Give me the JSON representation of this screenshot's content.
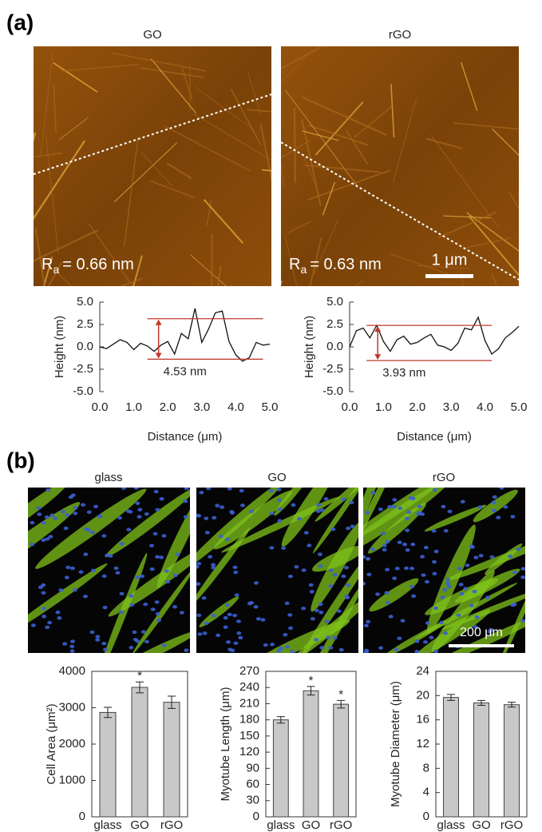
{
  "panel_labels": [
    "(a)",
    "(b)"
  ],
  "afm_images": [
    {
      "title": "GO",
      "roughness_symbol": "R",
      "roughness_sub": "a",
      "roughness_text": "= 0.66 nm"
    },
    {
      "title": "rGO",
      "roughness_symbol": "R",
      "roughness_sub": "a",
      "roughness_text": "= 0.63 nm",
      "scale_bar": "1 μm"
    }
  ],
  "fluorescence_images": [
    {
      "title": "glass"
    },
    {
      "title": "GO"
    },
    {
      "title": "rGO",
      "scale_bar": "200 μm"
    }
  ],
  "chart_data": [
    {
      "type": "line",
      "y_label": "Height (nm)",
      "x_label": "Distance (μm)",
      "color": "#111111",
      "x": [
        0.0,
        0.2,
        0.4,
        0.6,
        0.8,
        1.0,
        1.2,
        1.4,
        1.6,
        1.8,
        2.0,
        2.2,
        2.4,
        2.6,
        2.8,
        3.0,
        3.2,
        3.4,
        3.6,
        3.8,
        4.0,
        4.2,
        4.4,
        4.6,
        4.8,
        5.0
      ],
      "values": [
        0.0,
        -0.2,
        0.3,
        0.8,
        0.5,
        -0.3,
        0.4,
        0.1,
        -0.5,
        0.2,
        0.6,
        -0.8,
        1.5,
        0.9,
        4.3,
        0.5,
        2.0,
        3.8,
        4.0,
        0.6,
        -0.9,
        -1.6,
        -1.2,
        0.5,
        0.2,
        0.3
      ],
      "hlines": [
        3.15,
        -1.38
      ],
      "hline_x": [
        1.4,
        4.8
      ],
      "hline_color": "#c0392b",
      "annotation": "4.53 nm",
      "xlim": [
        0,
        5
      ],
      "ylim": [
        -5,
        5
      ],
      "xticks": [
        {
          "value": 0,
          "label": "0.0"
        },
        {
          "value": 1,
          "label": "1.0"
        },
        {
          "value": 2,
          "label": "2.0"
        },
        {
          "value": 3,
          "label": "3.0"
        },
        {
          "value": 4,
          "label": "4.0"
        },
        {
          "value": 5,
          "label": "5.0"
        }
      ],
      "yticks": [
        {
          "value": 5,
          "label": "5.0"
        },
        {
          "value": 2.5,
          "label": "2.5"
        },
        {
          "value": 0,
          "label": "0.0"
        },
        {
          "value": -2.5,
          "label": "-2.5"
        },
        {
          "value": -5,
          "label": "-5.0"
        }
      ]
    },
    {
      "type": "line",
      "y_label": "Height (nm)",
      "x_label": "Distance (μm)",
      "color": "#111111",
      "x": [
        0.0,
        0.2,
        0.4,
        0.6,
        0.8,
        1.0,
        1.2,
        1.4,
        1.6,
        1.8,
        2.0,
        2.2,
        2.4,
        2.6,
        2.8,
        3.0,
        3.2,
        3.4,
        3.6,
        3.8,
        4.0,
        4.2,
        4.4,
        4.6,
        4.8,
        5.0
      ],
      "values": [
        0.0,
        1.8,
        2.1,
        1.0,
        2.4,
        0.6,
        -0.5,
        0.8,
        1.2,
        0.3,
        0.5,
        1.0,
        1.4,
        0.2,
        0.0,
        -0.4,
        0.4,
        2.1,
        1.9,
        3.3,
        0.7,
        -0.8,
        -0.2,
        1.0,
        1.6,
        2.3
      ],
      "hlines": [
        2.4,
        -1.53
      ],
      "hline_x": [
        0.5,
        4.2
      ],
      "hline_color": "#c0392b",
      "annotation": "3.93 nm",
      "xlim": [
        0,
        5
      ],
      "ylim": [
        -5,
        5
      ],
      "xticks": [
        {
          "value": 0,
          "label": "0.0"
        },
        {
          "value": 1,
          "label": "1.0"
        },
        {
          "value": 2,
          "label": "2.0"
        },
        {
          "value": 3,
          "label": "3.0"
        },
        {
          "value": 4,
          "label": "4.0"
        },
        {
          "value": 5,
          "label": "5.0"
        }
      ],
      "yticks": [
        {
          "value": 5,
          "label": "5.0"
        },
        {
          "value": 2.5,
          "label": "2.5"
        },
        {
          "value": 0,
          "label": "0.0"
        },
        {
          "value": -2.5,
          "label": "-2.5"
        },
        {
          "value": -5,
          "label": "-5.0"
        }
      ]
    },
    {
      "type": "bar",
      "y_label": "Cell Area (μm²)",
      "categories": [
        "glass",
        "GO",
        "rGO"
      ],
      "values": [
        2870,
        3560,
        3150
      ],
      "errors": [
        140,
        150,
        170
      ],
      "markers": [
        null,
        "*",
        null
      ],
      "color": "#c8c8c8",
      "ylim": [
        0,
        4000
      ],
      "yticks": [
        0,
        1000,
        2000,
        3000,
        4000
      ]
    },
    {
      "type": "bar",
      "y_label": "Myotube Length (μm)",
      "categories": [
        "glass",
        "GO",
        "rGO"
      ],
      "values": [
        180,
        234,
        209
      ],
      "errors": [
        6,
        8,
        7
      ],
      "markers": [
        null,
        "*",
        "*"
      ],
      "color": "#c8c8c8",
      "ylim": [
        0,
        270
      ],
      "yticks": [
        0,
        30,
        60,
        90,
        120,
        150,
        180,
        210,
        240,
        270
      ]
    },
    {
      "type": "bar",
      "y_label": "Myotube Diameter (μm)",
      "categories": [
        "glass",
        "GO",
        "rGO"
      ],
      "values": [
        19.7,
        18.8,
        18.5
      ],
      "errors": [
        0.5,
        0.4,
        0.4
      ],
      "markers": [
        null,
        null,
        null
      ],
      "color": "#c8c8c8",
      "ylim": [
        0,
        24
      ],
      "yticks": [
        0,
        4,
        8,
        12,
        16,
        20,
        24
      ]
    }
  ]
}
